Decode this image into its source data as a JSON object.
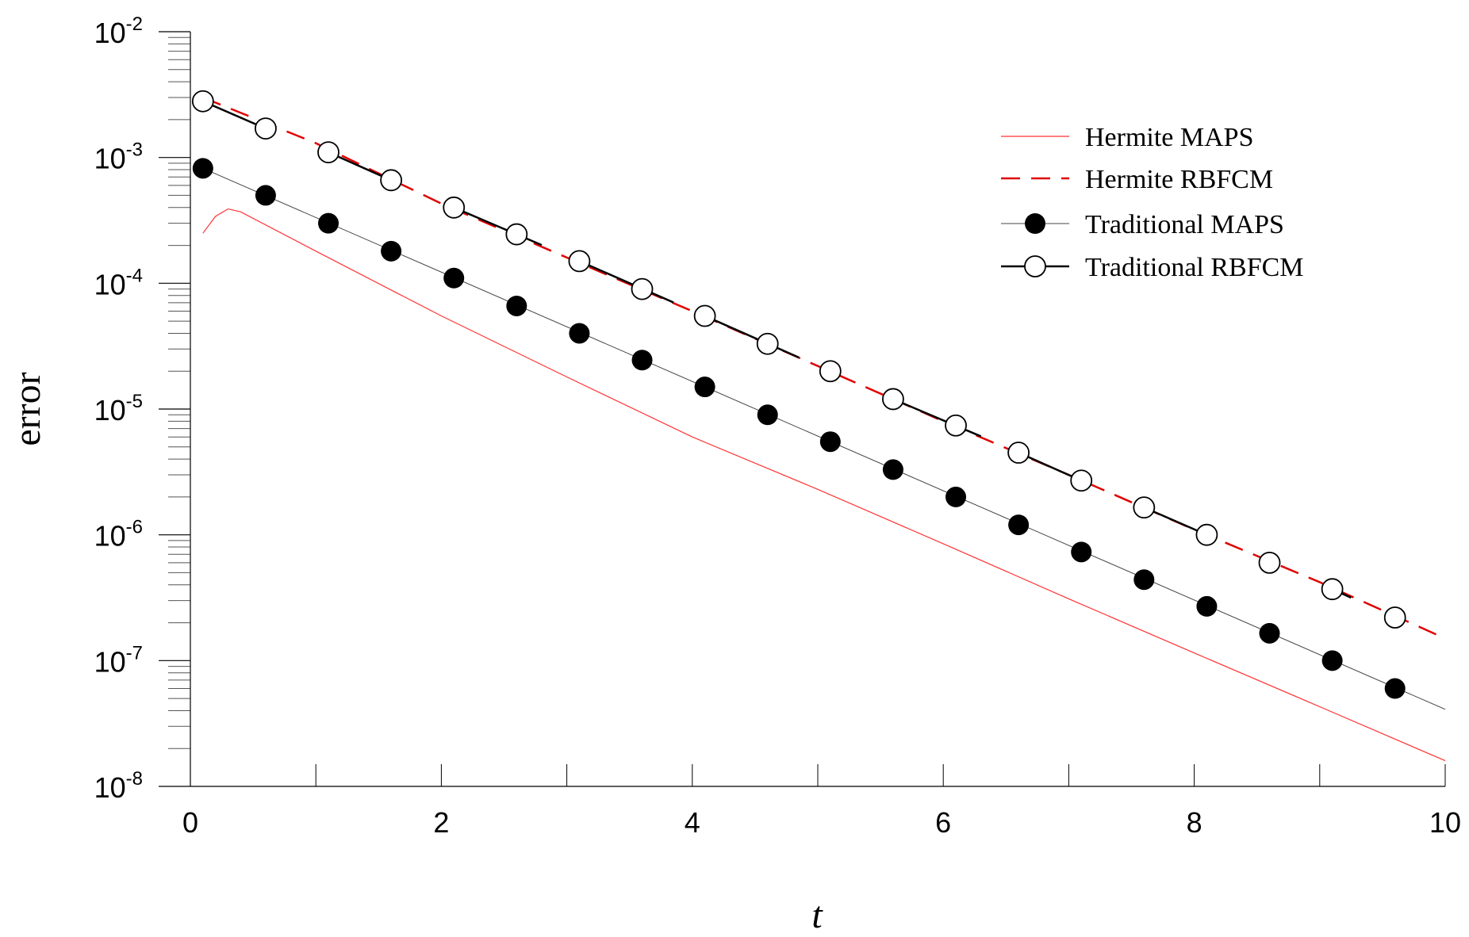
{
  "chart_data": {
    "type": "line",
    "xlabel": "t",
    "ylabel": "error",
    "xlim": [
      0,
      10
    ],
    "ylim": [
      1e-08,
      0.01
    ],
    "yscale": "log",
    "x_ticks": [
      0,
      2,
      4,
      6,
      8,
      10
    ],
    "x_tick_labels": [
      "0",
      "2",
      "4",
      "6",
      "8",
      "10"
    ],
    "y_tick_labels": [
      {
        "base": "10",
        "exp": "-8",
        "value": 1e-08
      },
      {
        "base": "10",
        "exp": "-7",
        "value": 1e-07
      },
      {
        "base": "10",
        "exp": "-6",
        "value": 1e-06
      },
      {
        "base": "10",
        "exp": "-5",
        "value": 1e-05
      },
      {
        "base": "10",
        "exp": "-4",
        "value": 0.0001
      },
      {
        "base": "10",
        "exp": "-3",
        "value": 0.001
      },
      {
        "base": "10",
        "exp": "-2",
        "value": 0.01
      }
    ],
    "grid": false,
    "legend_position": "top-right",
    "series": [
      {
        "name": "Hermite MAPS",
        "style": "thin-line",
        "color": "#ff3333",
        "x": [
          0.1,
          0.2,
          0.3,
          0.4,
          1,
          2,
          3,
          4,
          5,
          6,
          7,
          8,
          9,
          10
        ],
        "y": [
          0.00025,
          0.00034,
          0.00039,
          0.00037,
          0.00018,
          5.5e-05,
          1.8e-05,
          6e-06,
          2.3e-06,
          8.5e-07,
          3.1e-07,
          1.15e-07,
          4.3e-08,
          1.6e-08
        ]
      },
      {
        "name": "Hermite RBFCM",
        "style": "dashed-line",
        "color": "#e00000",
        "x": [
          0.1,
          1,
          2,
          3,
          4,
          5,
          6,
          7,
          8,
          9,
          10
        ],
        "y": [
          0.003,
          0.0013,
          0.00043,
          0.00016,
          6e-05,
          2.2e-05,
          8e-06,
          3e-06,
          1.1e-06,
          4.2e-07,
          1.5e-07
        ]
      },
      {
        "name": "Traditional MAPS",
        "style": "thin-line-filled-circles",
        "color": "#000000",
        "x": [
          0.1,
          0.6,
          1.1,
          1.6,
          2.1,
          2.6,
          3.1,
          3.6,
          4.1,
          4.6,
          5.1,
          5.6,
          6.1,
          6.6,
          7.1,
          7.6,
          8.1,
          8.6,
          9.1,
          9.6
        ],
        "y": [
          0.00082,
          0.0005,
          0.0003,
          0.00018,
          0.00011,
          6.6e-05,
          4e-05,
          2.45e-05,
          1.5e-05,
          9e-06,
          5.5e-06,
          3.3e-06,
          2e-06,
          1.2e-06,
          7.3e-07,
          4.4e-07,
          2.7e-07,
          1.65e-07,
          1e-07,
          6e-08
        ],
        "line_x": [
          0.1,
          10
        ],
        "line_y": [
          0.00082,
          4.1e-08
        ]
      },
      {
        "name": "Traditional RBFCM",
        "style": "line-open-circles",
        "color": "#000000",
        "x": [
          0.1,
          0.6,
          1.1,
          1.6,
          2.1,
          2.6,
          3.1,
          3.6,
          4.1,
          4.6,
          5.1,
          5.6,
          6.1,
          6.6,
          7.1,
          7.6,
          8.1,
          8.6,
          9.1,
          9.6
        ],
        "y": [
          0.0028,
          0.0017,
          0.0011,
          0.00066,
          0.0004,
          0.000245,
          0.00015,
          9e-05,
          5.5e-05,
          3.3e-05,
          2e-05,
          1.2e-05,
          7.4e-06,
          4.5e-06,
          2.7e-06,
          1.65e-06,
          1e-06,
          6e-07,
          3.7e-07,
          2.2e-07
        ],
        "segments": [
          [
            0.1,
            0.6
          ],
          [
            1.1,
            1.6
          ],
          [
            2.1,
            2.8
          ],
          [
            3.1,
            3.85
          ],
          [
            4.1,
            4.85
          ],
          [
            5.6,
            6.3
          ],
          [
            6.6,
            7.1
          ],
          [
            7.6,
            8.1
          ],
          [
            9.1,
            9.25
          ]
        ]
      }
    ]
  }
}
